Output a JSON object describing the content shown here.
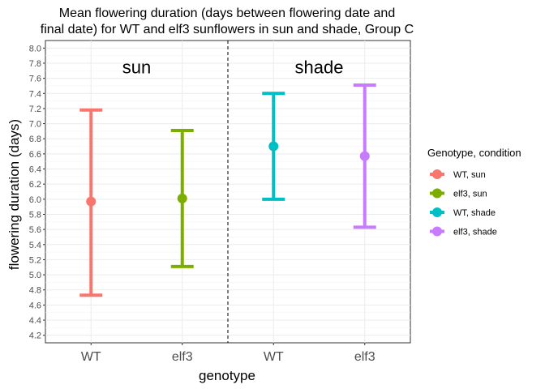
{
  "chart_data": {
    "type": "scatter",
    "title_lines": [
      "Mean flowering duration (days between flowering date and",
      "final date) for WT and elf3 sunflowers in sun and shade, Group C"
    ],
    "xlabel": "genotype",
    "ylabel": "flowering duration (days)",
    "ylim": [
      4.1,
      8.1
    ],
    "yticks": [
      "4.2",
      "4.4",
      "4.6",
      "4.8",
      "5.0",
      "5.2",
      "5.4",
      "5.6",
      "5.8",
      "6.0",
      "6.2",
      "6.4",
      "6.6",
      "6.8",
      "7.0",
      "7.2",
      "7.4",
      "7.6",
      "7.8",
      "8.0"
    ],
    "categories": [
      "WT",
      "elf3",
      "WT",
      "elf3"
    ],
    "grid": true,
    "legend_placement": "right",
    "legend_title": "Genotype, condition",
    "annotations": [
      {
        "text": "sun",
        "x": 1.5,
        "y": 7.75
      },
      {
        "text": "shade",
        "x": 3.5,
        "y": 7.75
      }
    ],
    "divider_x": 2.5,
    "series": [
      {
        "name": "WT, sun",
        "x": 1,
        "mean": 5.97,
        "lower": 4.73,
        "upper": 7.18,
        "color": "#F8766D"
      },
      {
        "name": "elf3, sun",
        "x": 2,
        "mean": 6.01,
        "lower": 5.11,
        "upper": 6.91,
        "color": "#7CAE00"
      },
      {
        "name": "WT, shade",
        "x": 3,
        "mean": 6.7,
        "lower": 6.0,
        "upper": 7.4,
        "color": "#00BFC4"
      },
      {
        "name": "elf3, shade",
        "x": 4,
        "mean": 6.57,
        "lower": 5.63,
        "upper": 7.51,
        "color": "#C77CFF"
      }
    ]
  }
}
